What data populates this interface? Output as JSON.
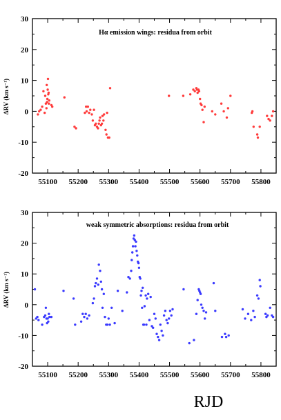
{
  "figure": {
    "x_axis_label": "RJD"
  },
  "chart_data": [
    {
      "type": "scatter",
      "title": "Hα emission wings: residua from orbit",
      "ylabel": "ΔRV (km s⁻¹)",
      "xlabel": "",
      "xlim": [
        55050,
        55850
      ],
      "ylim": [
        -20,
        30
      ],
      "x_ticks": [
        55100,
        55200,
        55300,
        55400,
        55500,
        55600,
        55700,
        55800
      ],
      "y_ticks": [
        -20,
        -10,
        0,
        10,
        20,
        30
      ],
      "grid": false,
      "color": "#ff3b3b",
      "x": [
        55068,
        55072,
        55077,
        55082,
        55086,
        55090,
        55092,
        55094,
        55096,
        55097,
        55098,
        55099,
        55100,
        55101,
        55102,
        55103,
        55104,
        55105,
        55112,
        55115,
        55155,
        55188,
        55193,
        55222,
        55226,
        55228,
        55232,
        55236,
        55240,
        55245,
        55248,
        55252,
        55255,
        55258,
        55262,
        55265,
        55268,
        55270,
        55272,
        55275,
        55278,
        55280,
        55283,
        55285,
        55290,
        55293,
        55295,
        55298,
        55302,
        55305,
        55498,
        55545,
        55568,
        55578,
        55583,
        55588,
        55590,
        55592,
        55595,
        55597,
        55600,
        55602,
        55605,
        55608,
        55612,
        55615,
        55640,
        55650,
        55670,
        55678,
        55688,
        55692,
        55700,
        55770,
        55772,
        55776,
        55788,
        55790,
        55796,
        55820,
        55825,
        55830,
        55836,
        55840
      ],
      "y": [
        -1,
        0,
        0.5,
        1.5,
        6.5,
        -0.5,
        5,
        2.5,
        1,
        8.5,
        3,
        4,
        7,
        10.5,
        5.5,
        6,
        2.5,
        3.5,
        2,
        1.5,
        4.5,
        -5,
        -5.5,
        -0.5,
        1.5,
        0,
        1.5,
        -0.5,
        0.5,
        -1,
        -3,
        0.5,
        -4.5,
        -4,
        -5,
        -5.5,
        -4,
        -3,
        -2,
        -4.5,
        -4,
        -1.5,
        -3,
        -1,
        -6,
        -7.5,
        -0.5,
        -8.5,
        -8.5,
        7.5,
        5,
        5,
        5.5,
        7,
        6.5,
        7.5,
        7,
        6,
        7,
        6.5,
        4,
        2.5,
        2,
        0.5,
        -3.5,
        1.5,
        0,
        -1,
        2.5,
        0,
        -2,
        1,
        5,
        -0.5,
        0,
        -5,
        -7.5,
        -8.5,
        -5,
        -1.5,
        -2.5,
        -3,
        -1.5,
        0
      ]
    },
    {
      "type": "scatter",
      "title": "weak symmetric absorptions: residua from orbit",
      "ylabel": "ΔRV (km s⁻¹)",
      "xlabel": "",
      "xlim": [
        55050,
        55850
      ],
      "ylim": [
        -20,
        30
      ],
      "x_ticks": [
        55100,
        55200,
        55300,
        55400,
        55500,
        55600,
        55700,
        55800
      ],
      "y_ticks": [
        -20,
        -10,
        0,
        10,
        20,
        30
      ],
      "grid": false,
      "color": "#3b3bff",
      "x": [
        55058,
        55062,
        55066,
        55070,
        55082,
        55088,
        55092,
        55094,
        55096,
        55098,
        55100,
        55102,
        55104,
        55106,
        55112,
        55152,
        55185,
        55190,
        55210,
        55215,
        55220,
        55225,
        55230,
        55236,
        55248,
        55252,
        55255,
        55258,
        55262,
        55266,
        55268,
        55272,
        55275,
        55278,
        55280,
        55284,
        55288,
        55292,
        55296,
        55300,
        55304,
        55310,
        55320,
        55330,
        55345,
        55360,
        55365,
        55370,
        55374,
        55376,
        55378,
        55380,
        55382,
        55384,
        55386,
        55388,
        55390,
        55392,
        55394,
        55396,
        55398,
        55400,
        55402,
        55404,
        55406,
        55408,
        55410,
        55412,
        55414,
        55416,
        55418,
        55422,
        55424,
        55426,
        55430,
        55434,
        55438,
        55442,
        55446,
        55450,
        55454,
        55458,
        55462,
        55466,
        55470,
        55474,
        55478,
        55482,
        55486,
        55490,
        55494,
        55498,
        55502,
        55506,
        55510,
        55546,
        55565,
        55580,
        55588,
        55592,
        55596,
        55598,
        55600,
        55602,
        55604,
        55608,
        55612,
        55616,
        55620,
        55645,
        55650,
        55672,
        55682,
        55686,
        55694,
        55740,
        55748,
        55758,
        55768,
        55775,
        55780,
        55788,
        55792,
        55796,
        55798,
        55815,
        55818,
        55822,
        55830,
        55836,
        55840
      ],
      "y": [
        5,
        -4.5,
        -4,
        -5,
        -6.5,
        -4,
        -3.5,
        -1,
        -4.5,
        -6,
        -4.5,
        -5.5,
        -3,
        -4,
        -4,
        4.5,
        2,
        -6.5,
        -5.5,
        -3,
        -4,
        -3,
        -4.5,
        -3.5,
        0.5,
        2,
        6,
        7,
        8.5,
        6.5,
        13,
        11,
        7.5,
        5,
        -1,
        3.5,
        -4,
        -6.5,
        -6.5,
        -4.5,
        -6.5,
        -1,
        -6,
        4.5,
        -2,
        4,
        9,
        8.5,
        11,
        14.5,
        17,
        19,
        21.5,
        22.5,
        21,
        19,
        20.5,
        17.5,
        16,
        14,
        13.5,
        12,
        9,
        8.5,
        3,
        4.5,
        -1,
        5.5,
        -6.5,
        -6.5,
        -0.5,
        3,
        -6.5,
        2,
        3.5,
        -5,
        2.5,
        -7,
        -7.5,
        -3,
        -4.5,
        -9.5,
        -10.5,
        -11.5,
        -6.5,
        -8.5,
        -10,
        -3.5,
        -2,
        -5,
        -6,
        -4.5,
        -2,
        -3.5,
        -1.5,
        5,
        -12.5,
        -11.5,
        -3,
        1.5,
        5,
        4.5,
        4,
        3.5,
        0,
        -1,
        -2,
        -4.5,
        -2.5,
        7,
        -2,
        -10.5,
        -9.5,
        -10.5,
        -10,
        -1.5,
        -4.5,
        -3,
        -5,
        -2,
        -4,
        3,
        2,
        8,
        6,
        -3,
        -4,
        -3.5,
        -1,
        -3.5,
        -4
      ]
    }
  ]
}
